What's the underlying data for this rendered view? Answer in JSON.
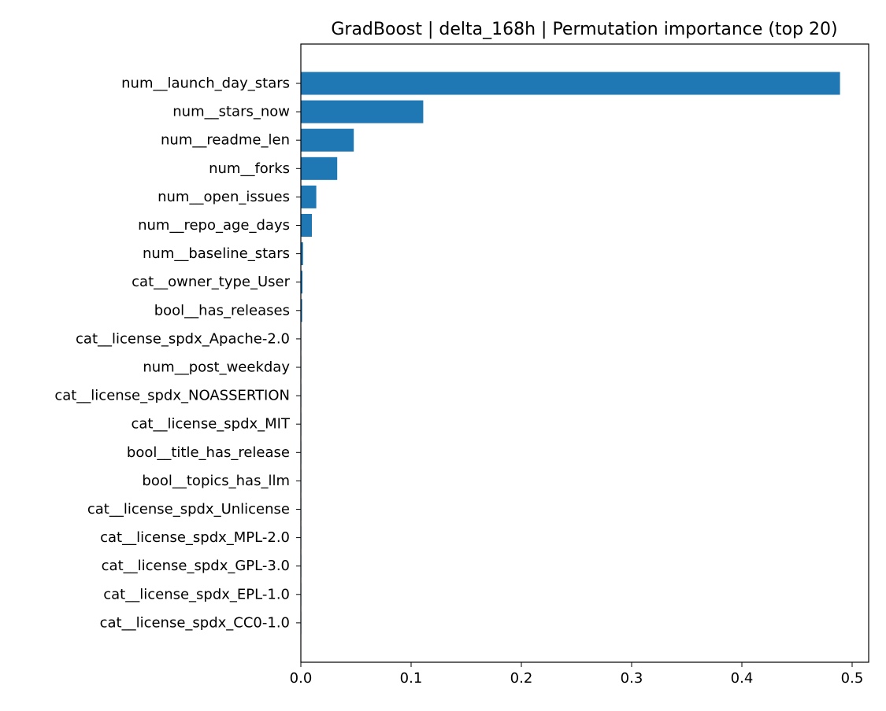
{
  "chart_data": {
    "type": "bar",
    "orientation": "horizontal",
    "title": "GradBoost | delta_168h | Permutation importance (top 20)",
    "xlabel": "",
    "ylabel": "",
    "xlim": [
      0,
      0.515
    ],
    "x_ticks": [
      0,
      0.1,
      0.2,
      0.3,
      0.4,
      0.5
    ],
    "x_tick_labels": [
      "0.0",
      "0.1",
      "0.2",
      "0.3",
      "0.4",
      "0.5"
    ],
    "grid": false,
    "legend": "none",
    "bar_color": "#1f77b4",
    "categories": [
      "num__launch_day_stars",
      "num__stars_now",
      "num__readme_len",
      "num__forks",
      "num__open_issues",
      "num__repo_age_days",
      "num__baseline_stars",
      "cat__owner_type_User",
      "bool__has_releases",
      "cat__license_spdx_Apache-2.0",
      "num__post_weekday",
      "cat__license_spdx_NOASSERTION",
      "cat__license_spdx_MIT",
      "bool__title_has_release",
      "bool__topics_has_llm",
      "cat__license_spdx_Unlicense",
      "cat__license_spdx_MPL-2.0",
      "cat__license_spdx_GPL-3.0",
      "cat__license_spdx_EPL-1.0",
      "cat__license_spdx_CC0-1.0"
    ],
    "values": [
      0.489,
      0.111,
      0.048,
      0.033,
      0.014,
      0.01,
      0.002,
      0.0015,
      0.0012,
      0.0003,
      0.0002,
      0.0002,
      0.0001,
      0.0001,
      0.0001,
      5e-05,
      5e-05,
      3e-05,
      2e-05,
      1e-05
    ]
  }
}
